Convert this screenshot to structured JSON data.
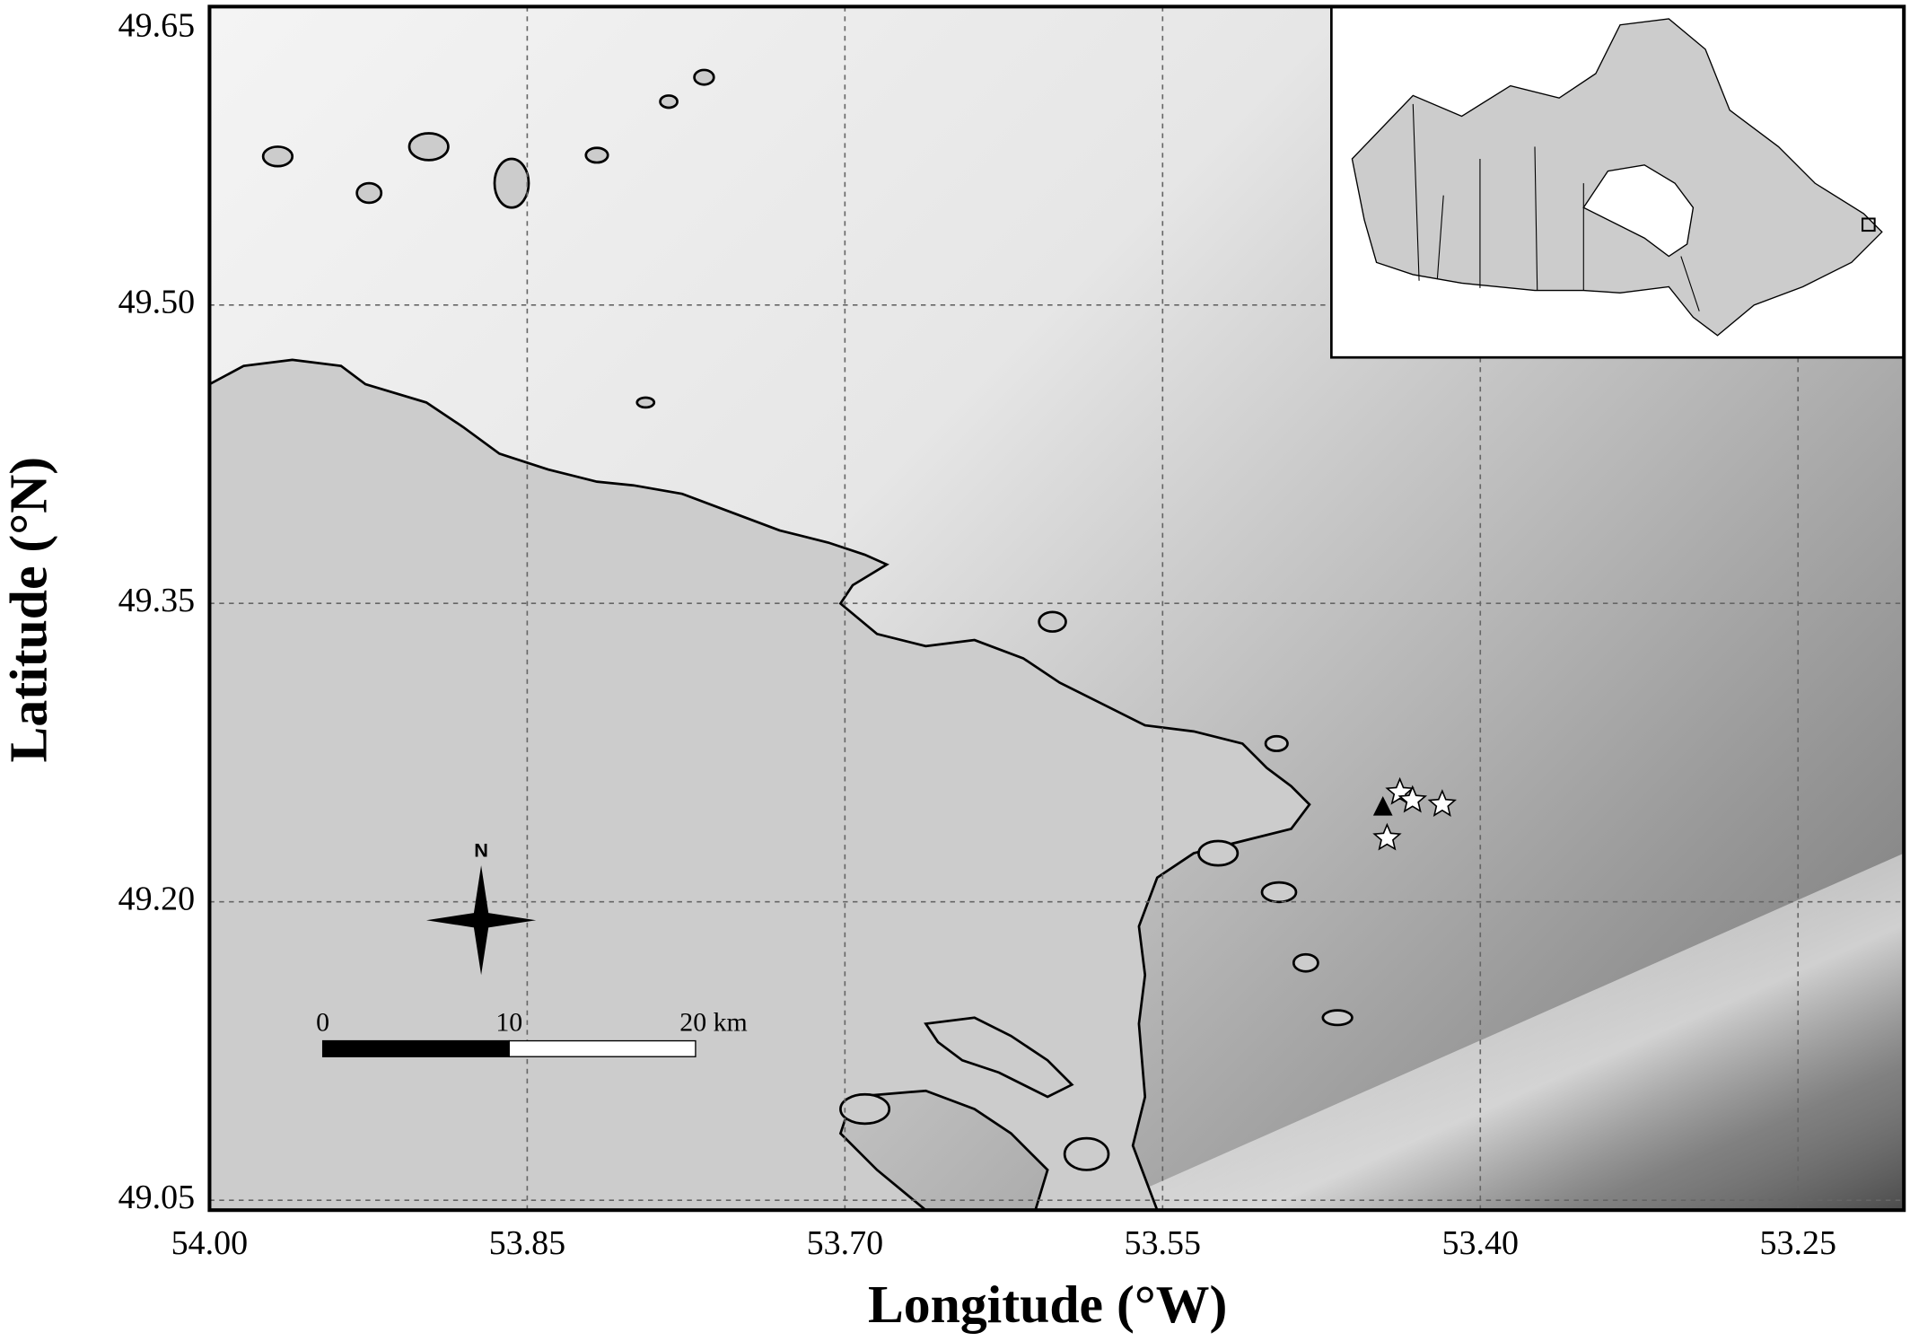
{
  "map": {
    "xlabel": "Longitude (°W)",
    "ylabel": "Latitude (°N)",
    "xlim": [
      54.0,
      53.2
    ],
    "ylim": [
      49.045,
      49.65
    ],
    "xticks": [
      {
        "value": 54.0,
        "label": "54.00"
      },
      {
        "value": 53.85,
        "label": "53.85"
      },
      {
        "value": 53.7,
        "label": "53.70"
      },
      {
        "value": 53.55,
        "label": "53.55"
      },
      {
        "value": 53.4,
        "label": "53.40"
      },
      {
        "value": 53.25,
        "label": "53.25"
      }
    ],
    "yticks": [
      {
        "value": 49.05,
        "label": "49.05"
      },
      {
        "value": 49.2,
        "label": "49.20"
      },
      {
        "value": 49.35,
        "label": "49.35"
      },
      {
        "value": 49.5,
        "label": "49.50"
      },
      {
        "value": 49.65,
        "label": "49.65"
      }
    ],
    "grid": true,
    "sites": {
      "lon": [
        53.438,
        53.432,
        53.418,
        53.444
      ],
      "lat": [
        49.255,
        49.251,
        49.249,
        49.232
      ]
    },
    "station": {
      "lon": 53.446,
      "lat": 49.247
    },
    "scale_bar": {
      "labels": [
        "0",
        "10",
        "20 km"
      ]
    },
    "north": "N"
  }
}
